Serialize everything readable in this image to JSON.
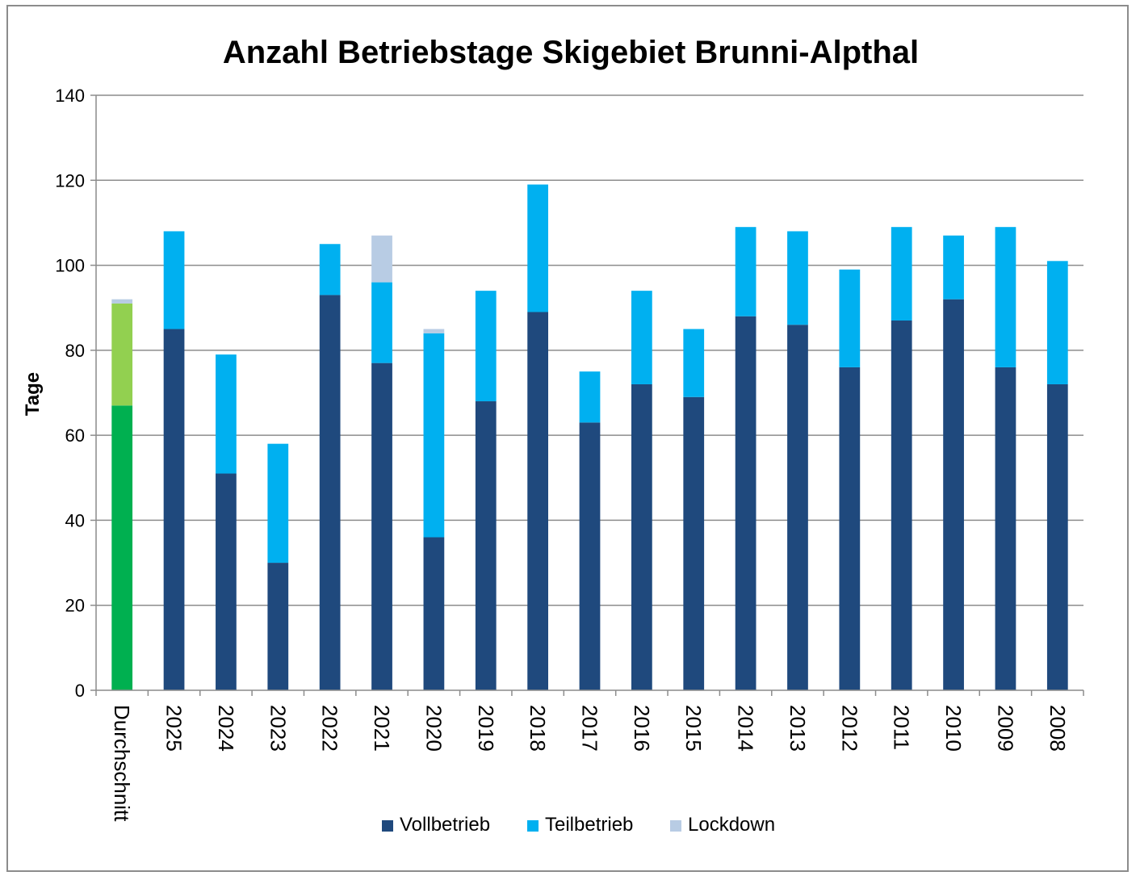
{
  "chart_data": {
    "type": "bar",
    "stacked": true,
    "title": "Anzahl Betriebstage Skigebiet Brunni-Alpthal",
    "xlabel": "",
    "ylabel": "Tage",
    "ylim": [
      0,
      140
    ],
    "yticks": [
      0,
      20,
      40,
      60,
      80,
      100,
      120,
      140
    ],
    "grid": true,
    "legend": "bottom",
    "categories": [
      "Durchschnitt",
      "2025",
      "2024",
      "2023",
      "2022",
      "2021",
      "2020",
      "2019",
      "2018",
      "2017",
      "2016",
      "2015",
      "2014",
      "2013",
      "2012",
      "2011",
      "2010",
      "2009",
      "2008"
    ],
    "series": [
      {
        "name": "Vollbetrieb",
        "color": "#1f497d",
        "values": [
          67,
          85,
          51,
          30,
          93,
          77,
          36,
          68,
          89,
          63,
          72,
          69,
          88,
          86,
          76,
          87,
          92,
          76,
          72
        ]
      },
      {
        "name": "Teilbetrieb",
        "color": "#00b0f0",
        "values": [
          24,
          23,
          28,
          28,
          12,
          19,
          48,
          26,
          30,
          12,
          22,
          16,
          21,
          22,
          23,
          22,
          15,
          33,
          29
        ]
      },
      {
        "name": "Lockdown",
        "color": "#b8cce4",
        "values": [
          1,
          0,
          0,
          0,
          0,
          11,
          1,
          0,
          0,
          0,
          0,
          0,
          0,
          0,
          0,
          0,
          0,
          0,
          0
        ]
      }
    ],
    "highlight": {
      "category": "Durchschnitt",
      "colors": [
        "#00b050",
        "#92d050",
        "#b8cce4"
      ]
    }
  }
}
